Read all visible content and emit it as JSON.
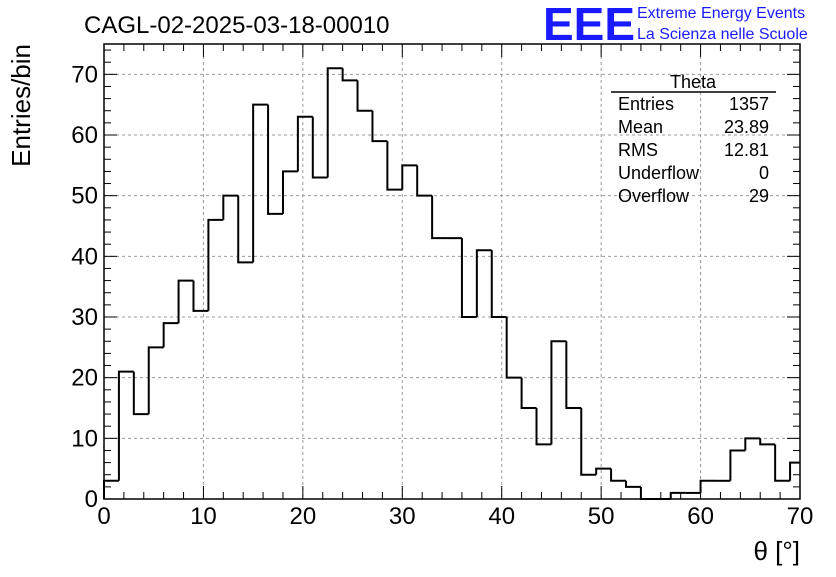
{
  "chart_data": {
    "type": "bar",
    "histogram": true,
    "title": "CAGL-02-2025-03-18-00010",
    "xlabel": "θ [°]",
    "ylabel": "Entries/bin",
    "xlim": [
      0,
      70
    ],
    "ylim": [
      0,
      75
    ],
    "bin_width": 1.5,
    "grid": true,
    "x_ticks": [
      0,
      10,
      20,
      30,
      40,
      50,
      60,
      70
    ],
    "y_ticks": [
      0,
      10,
      20,
      30,
      40,
      50,
      60,
      70
    ],
    "bin_edges": [
      0,
      1.5,
      3,
      4.5,
      6,
      7.5,
      9,
      10.5,
      12,
      13.5,
      15,
      16.5,
      18,
      19.5,
      21,
      22.5,
      24,
      25.5,
      27,
      28.5,
      30,
      31.5,
      33,
      34.5,
      36,
      37.5,
      39,
      40.5,
      42,
      43.5,
      45,
      46.5,
      48,
      49.5,
      51,
      52.5,
      54,
      55.5,
      57,
      58.5,
      60,
      61.5,
      63,
      64.5,
      66,
      67.5,
      69,
      70
    ],
    "values": [
      3,
      21,
      14,
      25,
      29,
      36,
      31,
      46,
      50,
      39,
      65,
      47,
      54,
      63,
      53,
      71,
      69,
      64,
      59,
      51,
      55,
      50,
      43,
      43,
      30,
      41,
      30,
      20,
      15,
      9,
      26,
      15,
      4,
      5,
      3,
      2,
      0,
      0,
      1,
      1,
      3,
      3,
      8,
      10,
      9,
      3,
      6
    ],
    "stats_box": {
      "title": "Theta",
      "rows": [
        {
          "label": "Entries",
          "value": "1357"
        },
        {
          "label": "Mean",
          "value": "23.89"
        },
        {
          "label": "RMS",
          "value": "12.81"
        },
        {
          "label": "Underflow",
          "value": "0"
        },
        {
          "label": "Overflow",
          "value": "29"
        }
      ]
    },
    "logo": {
      "mark": "EEE",
      "line1": "Extreme Energy Events",
      "line2": "La Scienza nelle Scuole",
      "color": "#1a1aff"
    },
    "line_color": "#000000"
  }
}
